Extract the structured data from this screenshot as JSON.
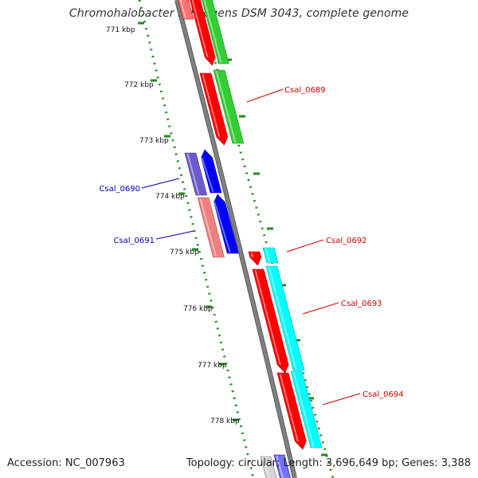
{
  "title": "Chromohalobacter salexigens DSM 3043, complete genome",
  "accession": "Accession: NC_007963",
  "topology": "Topology: circular; Length: 3,696,649 bp; Genes: 3,388",
  "kbp_labels": [
    "771 kbp",
    "772 kbp",
    "773 kbp",
    "774 kbp",
    "775 kbp",
    "776 kbp",
    "777 kbp",
    "778 kbp"
  ],
  "gene_labels": [
    {
      "text": "Csal_0689",
      "color": "#cc0000"
    },
    {
      "text": "Csal_0690",
      "color": "#0000aa"
    },
    {
      "text": "Csal_0691",
      "color": "#0000aa"
    },
    {
      "text": "Csal_0692",
      "color": "#cc0000"
    },
    {
      "text": "Csal_0693",
      "color": "#cc0000"
    },
    {
      "text": "Csal_0694",
      "color": "#cc0000"
    }
  ],
  "colors": {
    "backbone": "#808080",
    "ruler_dots": "#228b22",
    "cds_forward": "#ff0000",
    "cds_reverse": "#0000ff",
    "gene_green": "#33cc33",
    "gene_cyan": "#00ffff",
    "gene_purple": "#6a5acd",
    "gene_pink": "#f08080"
  }
}
